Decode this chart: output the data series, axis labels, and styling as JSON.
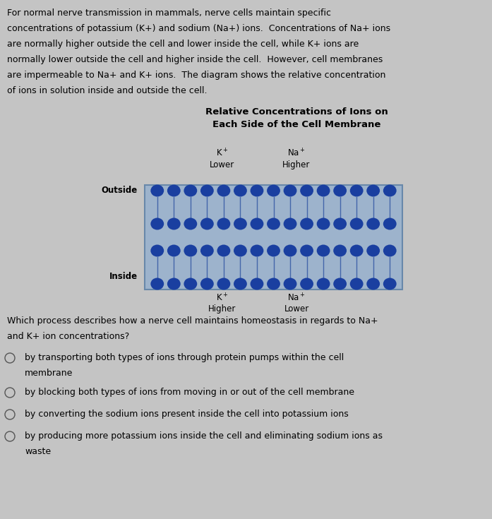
{
  "bg_color": "#c4c4c4",
  "title_line1": "Relative Concentrations of Ions on",
  "title_line2": "Each Side of the Cell Membrane",
  "title_fontsize": 9.5,
  "paragraph_lines": [
    "For normal nerve transmission in mammals, nerve cells maintain specific",
    "concentrations of potassium (K+) and sodium (Na+) ions.  Concentrations of Na+ ions",
    "are normally higher outside the cell and lower inside the cell, while K+ ions are",
    "normally lower outside the cell and higher inside the cell.  However, cell membranes",
    "are impermeable to Na+ and K+ ions.  The diagram shows the relative concentration",
    "of ions in solution inside and outside the cell."
  ],
  "para_fontsize": 9.0,
  "question_lines": [
    "Which process describes how a nerve cell maintains homeostasis in regards to Na+",
    "and K+ ion concentrations?"
  ],
  "q_fontsize": 9.0,
  "options": [
    "by transporting both types of ions through protein pumps within the cell\nmembrane",
    "by blocking both types of ions from moving in or out of the cell membrane",
    "by converting the sodium ions present inside the cell into potassium ions",
    "by producing more potassium ions inside the cell and eliminating sodium ions as\nwaste"
  ],
  "opt_fontsize": 9.0,
  "membrane_bg": "#9db3cc",
  "membrane_border": "#6888aa",
  "dot_color": "#1a3fa0",
  "stem_color": "#4466aa",
  "n_phospholipids": 15,
  "outside_label": "Outside",
  "inside_label": "Inside",
  "label_fontsize": 8.5
}
